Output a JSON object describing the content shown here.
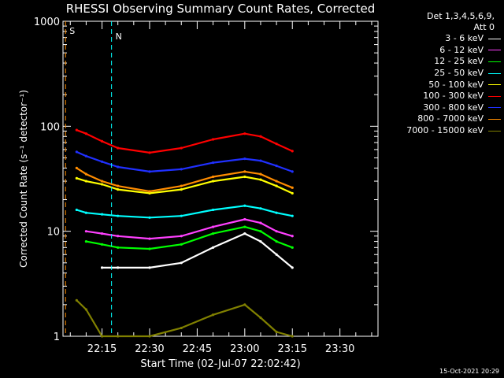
{
  "chart_data": {
    "type": "line",
    "title": "RHESSI Observing Summary Count Rates, Corrected",
    "xlabel": "Start Time (02-Jul-07 22:02:42)",
    "ylabel": "Corrected Count Rate (s⁻¹ detector⁻¹)",
    "yscale": "log",
    "ylim": [
      1,
      1000
    ],
    "xlim": [
      "22:02:42",
      "23:42:00"
    ],
    "x_ticks": [
      "22:15",
      "22:30",
      "22:45",
      "23:00",
      "23:15",
      "23:30"
    ],
    "y_ticks": [
      "1",
      "10",
      "100",
      "1000"
    ],
    "grid": false,
    "legend_position": "right",
    "legend_header": [
      "Det 1,3,4,5,6,9,",
      "Att 0"
    ],
    "series": [
      {
        "name": "3 - 6 keV",
        "color": "#ffffff",
        "x": [
          "22:15",
          "22:20",
          "22:30",
          "22:40",
          "22:50",
          "23:00",
          "23:05",
          "23:10",
          "23:15"
        ],
        "y": [
          4.5,
          4.5,
          4.5,
          5.0,
          7.0,
          9.5,
          8.0,
          6.0,
          4.5
        ]
      },
      {
        "name": "6 - 12 keV",
        "color": "#ff40ff",
        "x": [
          "22:10",
          "22:15",
          "22:20",
          "22:30",
          "22:40",
          "22:50",
          "23:00",
          "23:05",
          "23:10",
          "23:15"
        ],
        "y": [
          10.0,
          9.5,
          9.0,
          8.5,
          9.0,
          11.0,
          13.0,
          12.0,
          10.0,
          9.0
        ]
      },
      {
        "name": "12 - 25 keV",
        "color": "#00ff00",
        "x": [
          "22:10",
          "22:15",
          "22:20",
          "22:30",
          "22:40",
          "22:50",
          "23:00",
          "23:05",
          "23:10",
          "23:15"
        ],
        "y": [
          8.0,
          7.5,
          7.0,
          6.8,
          7.5,
          9.5,
          11.0,
          10.0,
          8.0,
          7.0
        ]
      },
      {
        "name": "25 - 50 keV",
        "color": "#00ffff",
        "x": [
          "22:07",
          "22:10",
          "22:15",
          "22:20",
          "22:30",
          "22:40",
          "22:50",
          "23:00",
          "23:05",
          "23:10",
          "23:15"
        ],
        "y": [
          16.0,
          15.0,
          14.5,
          14.0,
          13.5,
          14.0,
          16.0,
          17.5,
          16.5,
          15.0,
          14.0
        ]
      },
      {
        "name": "50 - 100 keV",
        "color": "#ffff00",
        "x": [
          "22:07",
          "22:10",
          "22:15",
          "22:20",
          "22:30",
          "22:40",
          "22:50",
          "23:00",
          "23:05",
          "23:10",
          "23:15"
        ],
        "y": [
          32,
          30,
          28,
          25,
          23,
          25,
          30,
          33,
          31,
          27,
          23
        ]
      },
      {
        "name": "100 - 300 keV",
        "color": "#ff0000",
        "x": [
          "22:07",
          "22:10",
          "22:15",
          "22:20",
          "22:30",
          "22:40",
          "22:50",
          "23:00",
          "23:05",
          "23:10",
          "23:15"
        ],
        "y": [
          92,
          85,
          72,
          62,
          56,
          62,
          75,
          85,
          80,
          68,
          58
        ]
      },
      {
        "name": "300 - 800 keV",
        "color": "#2030ff",
        "x": [
          "22:07",
          "22:10",
          "22:15",
          "22:20",
          "22:30",
          "22:40",
          "22:50",
          "23:00",
          "23:05",
          "23:10",
          "23:15"
        ],
        "y": [
          57,
          52,
          46,
          41,
          37,
          39,
          45,
          49,
          47,
          42,
          37
        ]
      },
      {
        "name": "800 - 7000 keV",
        "color": "#ff8c00",
        "x": [
          "22:07",
          "22:10",
          "22:15",
          "22:20",
          "22:30",
          "22:40",
          "22:50",
          "23:00",
          "23:05",
          "23:10",
          "23:15"
        ],
        "y": [
          40,
          35,
          30,
          27,
          24,
          27,
          33,
          37,
          35,
          30,
          26
        ]
      },
      {
        "name": "7000 - 15000 keV",
        "color": "#808000",
        "x": [
          "22:07",
          "22:10",
          "22:15",
          "22:20",
          "22:30",
          "22:40",
          "22:50",
          "23:00",
          "23:05",
          "23:10",
          "23:15"
        ],
        "y": [
          2.2,
          1.8,
          1.0,
          1.0,
          1.0,
          1.2,
          1.6,
          2.0,
          1.5,
          1.1,
          1.0
        ]
      }
    ],
    "annotations": [
      {
        "text": "S",
        "color": "#ff8c00"
      },
      {
        "text": "N",
        "color": "#00ffff"
      }
    ]
  },
  "footer": {
    "timestamp": "15-Oct-2021 20:29"
  }
}
